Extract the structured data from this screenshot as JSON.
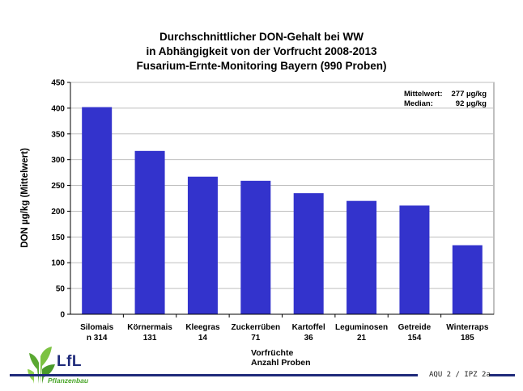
{
  "chart_data": {
    "type": "bar",
    "title_lines": [
      "Durchschnittlicher DON-Gehalt  bei WW",
      "in Abhängigkeit von der Vorfrucht 2008-2013",
      "Fusarium-Ernte-Monitoring  Bayern (990 Proben)"
    ],
    "ylabel": "DON µg/kg (Mittelwert)",
    "xlabel_lines": [
      "Vorfrüchte",
      "Anzahl Proben"
    ],
    "ylim": [
      0,
      450
    ],
    "yticks": [
      "0",
      "50",
      "100",
      "150",
      "200",
      "250",
      "300",
      "350",
      "400",
      "450"
    ],
    "grid": true,
    "categories": [
      "Silomais",
      "Körnermais",
      "Kleegras",
      "Zuckerrüben",
      "Kartoffel",
      "Leguminosen",
      "Getreide",
      "Winterraps"
    ],
    "sample_counts": [
      "n   314",
      "131",
      "14",
      "71",
      "36",
      "21",
      "154",
      "185"
    ],
    "values": [
      402,
      317,
      267,
      259,
      235,
      220,
      211,
      134
    ],
    "bar_color": "#3333cc",
    "stats": [
      {
        "label": "Mittelwert:",
        "value": "277 µg/kg"
      },
      {
        "label": "Median:",
        "value": "92 µg/kg"
      }
    ]
  },
  "footer": {
    "logo_text": "LfL",
    "logo_subtitle": "Pflanzenbau",
    "code": "AQU 2 / IPZ 2a",
    "line_color": "#1f2a7a"
  }
}
